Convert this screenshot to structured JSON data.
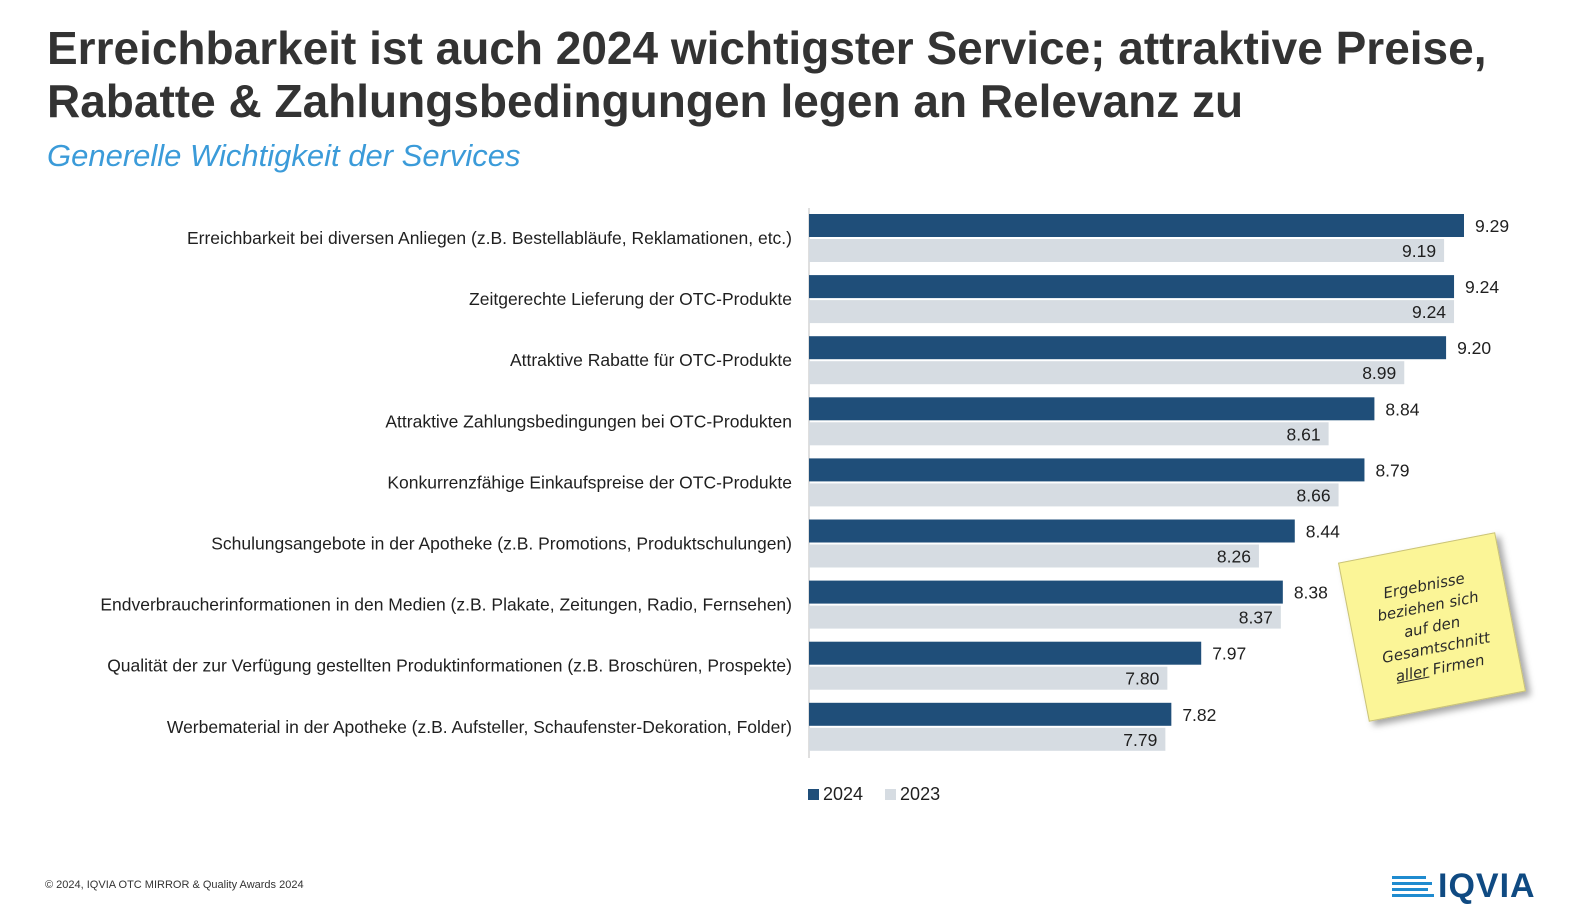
{
  "header": {
    "title_line1": "Erreichbarkeit ist auch 2024 wichtigster Service; attraktive Preise,",
    "title_line2": "Rabatte & Zahlungsbedingungen legen an Relevanz zu",
    "subtitle": "Generelle Wichtigkeit der Services"
  },
  "chart_data": {
    "type": "bar",
    "orientation": "horizontal",
    "categories": [
      "Erreichbarkeit bei diversen Anliegen (z.B. Bestellabläufe, Reklamationen, etc.)",
      "Zeitgerechte Lieferung der OTC-Produkte",
      "Attraktive Rabatte für OTC-Produkte",
      "Attraktive Zahlungsbedingungen bei OTC-Produkten",
      "Konkurrenzfähige Einkaufspreise der OTC-Produkte",
      "Schulungsangebote in der Apotheke (z.B. Promotions, Produktschulungen)",
      "Endverbraucherinformationen in den Medien (z.B. Plakate, Zeitungen, Radio, Fernsehen)",
      "Qualität der zur Verfügung gestellten Produktinformationen (z.B. Broschüren, Prospekte)",
      "Werbematerial in der Apotheke (z.B. Aufsteller, Schaufenster-Dekoration, Folder)"
    ],
    "series": [
      {
        "name": "2024",
        "color": "#1f4e79",
        "values": [
          9.29,
          9.24,
          9.2,
          8.84,
          8.79,
          8.44,
          8.38,
          7.97,
          7.82
        ]
      },
      {
        "name": "2023",
        "color": "#d6dce2",
        "values": [
          9.19,
          9.24,
          8.99,
          8.61,
          8.66,
          8.26,
          8.37,
          7.8,
          7.79
        ]
      }
    ],
    "value_labels": [
      [
        "9.29",
        "9.24",
        "9.20",
        "8.84",
        "8.79",
        "8.44",
        "8.38",
        "7.97",
        "7.82"
      ],
      [
        "9.19",
        "9.24",
        "8.99",
        "8.61",
        "8.66",
        "8.26",
        "8.37",
        "7.80",
        "7.79"
      ]
    ],
    "xlim": [
      6,
      10
    ],
    "grid": false,
    "legend": "bottom"
  },
  "note": {
    "lines": [
      "Ergebnisse",
      "beziehen sich",
      "auf den",
      "Gesamtschnitt"
    ],
    "last_line_underlined": "aller",
    "last_line_rest": "Firmen"
  },
  "footer": {
    "copyright": "© 2024, IQVIA OTC MIRROR & Quality Awards 2024",
    "logo_text": "IQVIA"
  }
}
